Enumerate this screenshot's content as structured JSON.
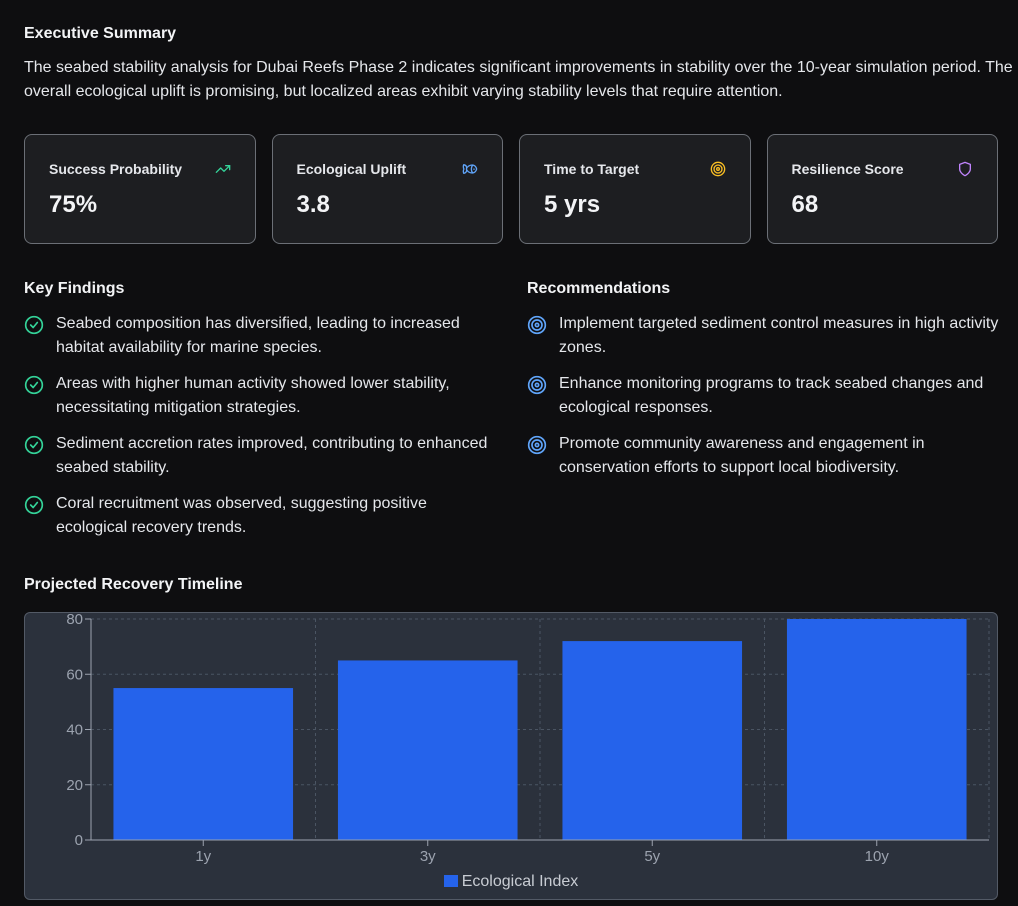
{
  "executive_summary": {
    "title": "Executive Summary",
    "text": "The seabed stability analysis for Dubai Reefs Phase 2 indicates significant improvements in stability over the 10-year simulation period. The overall ecological uplift is promising, but localized areas exhibit varying stability levels that require attention."
  },
  "metrics": [
    {
      "label": "Success Probability",
      "value": "75%",
      "icon": "trending-up-icon",
      "color": "#34d399"
    },
    {
      "label": "Ecological Uplift",
      "value": "3.8",
      "icon": "fish-icon",
      "color": "#60a5fa"
    },
    {
      "label": "Time to Target",
      "value": "5 yrs",
      "icon": "target-icon",
      "color": "#fbbf24"
    },
    {
      "label": "Resilience Score",
      "value": "68",
      "icon": "shield-icon",
      "color": "#c084fc"
    }
  ],
  "key_findings": {
    "title": "Key Findings",
    "icon": "check-circle-icon",
    "color": "#34d399",
    "items": [
      "Seabed composition has diversified, leading to increased habitat availability for marine species.",
      "Areas with higher human activity showed lower stability, necessitating mitigation strategies.",
      "Sediment accretion rates improved, contributing to enhanced seabed stability.",
      "Coral recruitment was observed, suggesting positive ecological recovery trends."
    ]
  },
  "recommendations": {
    "title": "Recommendations",
    "icon": "target-icon",
    "color": "#60a5fa",
    "items": [
      "Implement targeted sediment control measures in high activity zones.",
      "Enhance monitoring programs to track seabed changes and ecological responses.",
      "Promote community awareness and engagement in conservation efforts to support local biodiversity."
    ]
  },
  "timeline": {
    "title": "Projected Recovery Timeline"
  },
  "chart_data": {
    "type": "bar",
    "categories": [
      "1y",
      "3y",
      "5y",
      "10y"
    ],
    "series": [
      {
        "name": "Ecological Index",
        "values": [
          55,
          65,
          72,
          80
        ],
        "color": "#2563eb"
      }
    ],
    "yticks": [
      0,
      20,
      40,
      60,
      80
    ],
    "ylim": [
      0,
      80
    ],
    "grid": true,
    "legend": "bottom-center"
  }
}
